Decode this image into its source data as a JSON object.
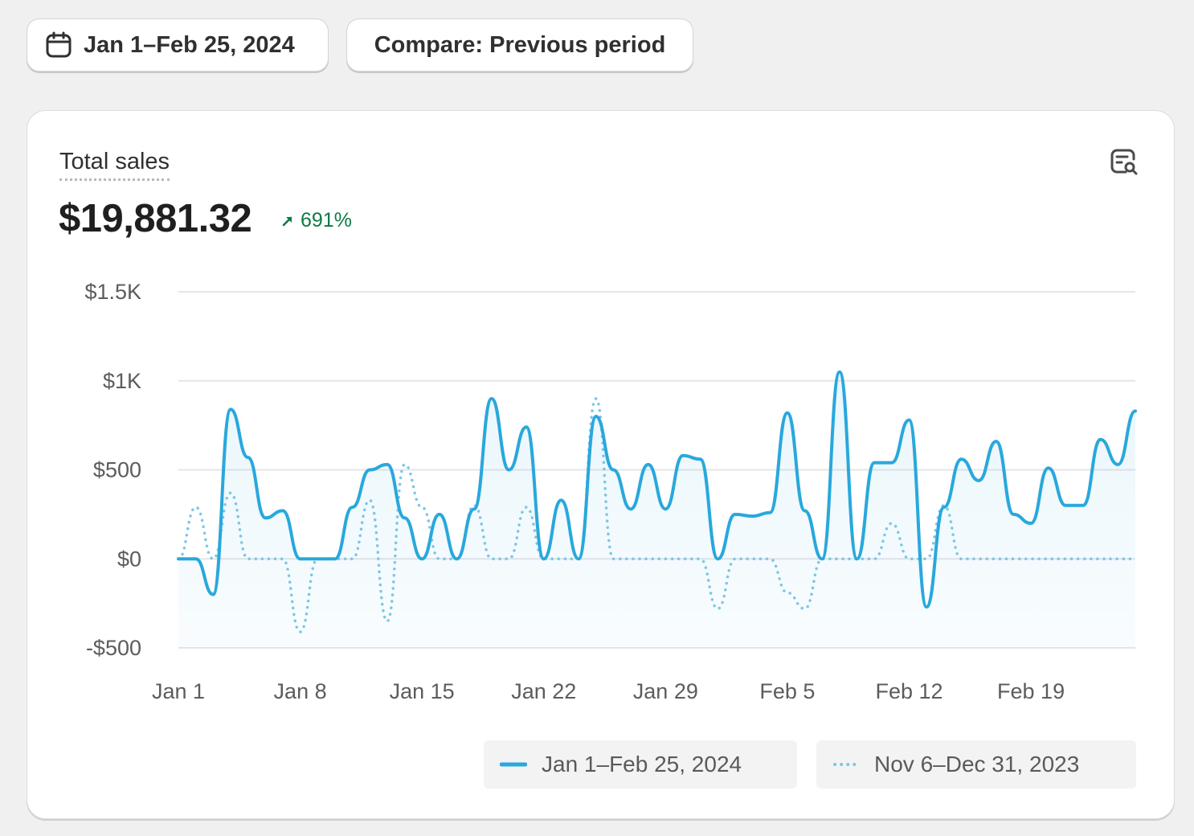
{
  "toolbar": {
    "date_range_label": "Jan 1–Feb 25, 2024",
    "compare_label": "Compare: Previous period"
  },
  "metric": {
    "title": "Total sales",
    "value": "$19,881.32",
    "change": "691%",
    "change_direction": "up"
  },
  "colors": {
    "current": "#29a8dc",
    "previous": "#7cc6e6",
    "positive": "#0c7a45"
  },
  "icons": {
    "date": "calendar-icon",
    "explore": "explore-data-icon",
    "trend": "arrow-up-right-icon"
  },
  "chart_data": {
    "type": "line",
    "title": "",
    "xlabel": "",
    "ylabel": "",
    "ylim": [
      -500,
      1500
    ],
    "y_ticks": [
      {
        "value": 1500,
        "label": "$1.5K"
      },
      {
        "value": 1000,
        "label": "$1K"
      },
      {
        "value": 500,
        "label": "$500"
      },
      {
        "value": 0,
        "label": "$0"
      },
      {
        "value": -500,
        "label": "-$500"
      }
    ],
    "x_ticks": [
      {
        "index": 0,
        "label": "Jan 1"
      },
      {
        "index": 7,
        "label": "Jan 8"
      },
      {
        "index": 14,
        "label": "Jan 15"
      },
      {
        "index": 21,
        "label": "Jan 22"
      },
      {
        "index": 28,
        "label": "Jan 29"
      },
      {
        "index": 35,
        "label": "Feb 5"
      },
      {
        "index": 42,
        "label": "Feb 12"
      },
      {
        "index": 49,
        "label": "Feb 19"
      }
    ],
    "grid": true,
    "legend_position": "bottom-right",
    "series": [
      {
        "name": "Jan 1–Feb 25, 2024",
        "style": "solid",
        "values": [
          0,
          0,
          -200,
          840,
          570,
          230,
          270,
          0,
          0,
          0,
          290,
          500,
          530,
          230,
          0,
          250,
          0,
          280,
          900,
          500,
          740,
          0,
          330,
          0,
          800,
          500,
          280,
          530,
          280,
          580,
          560,
          0,
          250,
          240,
          260,
          820,
          270,
          0,
          1050,
          0,
          540,
          540,
          780,
          -270,
          290,
          560,
          440,
          660,
          250,
          200,
          510,
          300,
          300,
          670,
          530,
          830
        ]
      },
      {
        "name": "Nov 6–Dec 31, 2023",
        "style": "dotted",
        "values": [
          0,
          290,
          0,
          370,
          0,
          0,
          0,
          -410,
          0,
          0,
          0,
          330,
          -350,
          530,
          290,
          0,
          0,
          300,
          0,
          0,
          290,
          0,
          0,
          0,
          900,
          0,
          0,
          0,
          0,
          0,
          0,
          -280,
          0,
          0,
          0,
          -190,
          -280,
          0,
          0,
          0,
          0,
          200,
          0,
          0,
          300,
          0,
          0,
          0,
          0,
          0,
          0,
          0,
          0,
          0,
          0,
          0
        ]
      }
    ]
  }
}
